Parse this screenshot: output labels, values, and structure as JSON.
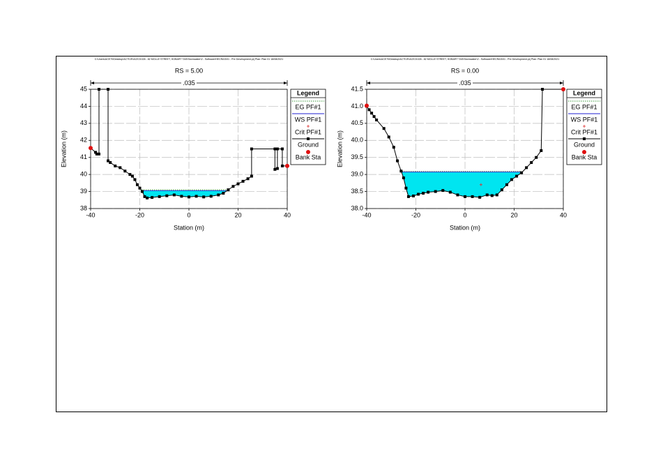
{
  "chart_data": [
    {
      "type": "line",
      "header": "C:\\Users\\ACE70\\Desktop\\ACTIVE\\ACE21026 - 82 MOLLE STREET, HOBART TAS\\Stormwater\\2 - Software\\HECRAS\\01 - Pre Development.prj    Plan: Plan 01    18/08/2021",
      "title": "RS = 5.00",
      "mannings_n": ".035",
      "xlabel": "Station (m)",
      "ylabel": "Elevation (m)",
      "xlim": [
        -40,
        40
      ],
      "ylim": [
        38,
        45
      ],
      "xticks": [
        -40,
        -20,
        0,
        20,
        40
      ],
      "yticks": [
        38,
        39,
        40,
        41,
        42,
        43,
        44,
        45
      ],
      "grid": true,
      "legend_title": "Legend",
      "series": [
        {
          "name": "EG PF#1",
          "color": "#3a9a3a",
          "line_style": "dotted",
          "marker": "none",
          "x": [
            -19.3,
            15.3
          ],
          "values": [
            39.1,
            39.1
          ]
        },
        {
          "name": "WS PF#1",
          "color": "#2020d0",
          "line_style": "solid",
          "marker": "none",
          "fill": "#00e5f0",
          "x": [
            -19.2,
            15.2
          ],
          "values": [
            39.05,
            39.05
          ]
        },
        {
          "name": "Crit PF#1",
          "color": "#e03030",
          "line_style": "none",
          "marker": "plus",
          "x": [],
          "values": []
        },
        {
          "name": "Ground",
          "color": "#000000",
          "line_style": "solid",
          "marker": "square",
          "x": [
            -40,
            -38,
            -37.5,
            -36.6,
            -36.6,
            -32.9,
            -32.9,
            -32,
            -30,
            -28,
            -26,
            -24,
            -23,
            -22,
            -21,
            -20,
            -19,
            -18,
            -17,
            -15,
            -12,
            -9,
            -6,
            -3,
            0,
            3,
            6,
            9,
            12,
            14,
            16,
            18,
            20,
            22,
            24,
            25.5,
            25.5,
            35,
            35,
            36,
            36,
            38,
            38,
            40
          ],
          "values": [
            41.55,
            41.3,
            41.2,
            41.2,
            45,
            45,
            40.8,
            40.7,
            40.5,
            40.4,
            40.2,
            40,
            39.9,
            39.7,
            39.4,
            39.2,
            39,
            38.7,
            38.62,
            38.65,
            38.7,
            38.75,
            38.8,
            38.72,
            38.68,
            38.72,
            38.68,
            38.72,
            38.8,
            38.9,
            39.1,
            39.3,
            39.45,
            39.6,
            39.75,
            39.9,
            41.5,
            41.5,
            40.3,
            40.35,
            41.5,
            41.5,
            40.5,
            40.5
          ]
        },
        {
          "name": "Bank Sta",
          "color": "#e01010",
          "line_style": "none",
          "marker": "circle",
          "x": [
            -40,
            40
          ],
          "values": [
            41.55,
            40.5
          ]
        }
      ]
    },
    {
      "type": "line",
      "header": "C:\\Users\\ACE70\\Desktop\\ACTIVE\\ACE21026 - 82 MOLLE STREET, HOBART TAS\\Stormwater\\2 - Software\\HECRAS\\01 - Pre Development.prj    Plan: Plan 01    18/08/2021",
      "title": "RS = 0.00",
      "mannings_n": ".035",
      "xlabel": "Station (m)",
      "ylabel": "Elevation (m)",
      "xlim": [
        -40,
        40
      ],
      "ylim": [
        38,
        41.5
      ],
      "xticks": [
        -40,
        -20,
        0,
        20,
        40
      ],
      "yticks": [
        {
          "value": 38,
          "label": "38.0"
        },
        38.5,
        {
          "value": 39,
          "label": "39.0"
        },
        39.5,
        {
          "value": 40,
          "label": "40.0"
        },
        40.5,
        {
          "value": 41,
          "label": "41.0"
        },
        41.5
      ],
      "grid": true,
      "legend_title": "Legend",
      "series": [
        {
          "name": "EG PF#1",
          "color": "#3a9a3a",
          "line_style": "dotted",
          "marker": "none",
          "x": [
            -26.4,
            22.9
          ],
          "values": [
            39.09,
            39.09
          ]
        },
        {
          "name": "WS PF#1",
          "color": "#2020d0",
          "line_style": "solid",
          "marker": "none",
          "fill": "#00e5f0",
          "x": [
            -26.3,
            22.8
          ],
          "values": [
            39.07,
            39.07
          ]
        },
        {
          "name": "Crit PF#1",
          "color": "#e03030",
          "line_style": "none",
          "marker": "plus",
          "x": [
            6.5
          ],
          "values": [
            38.7
          ]
        },
        {
          "name": "Ground",
          "color": "#000000",
          "line_style": "solid",
          "marker": "square",
          "x": [
            -40,
            -39,
            -38,
            -37,
            -36,
            -33,
            -31,
            -29,
            -27.5,
            -26,
            -25,
            -24,
            -23,
            -21,
            -19,
            -17,
            -15,
            -12,
            -9,
            -6,
            -3,
            0,
            3,
            6,
            9,
            11,
            13,
            15,
            17,
            19,
            21,
            23,
            25,
            27,
            29,
            31,
            31.5,
            40
          ],
          "values": [
            41.0,
            40.9,
            40.8,
            40.7,
            40.6,
            40.35,
            40.1,
            39.8,
            39.4,
            39.1,
            38.9,
            38.6,
            38.35,
            38.37,
            38.42,
            38.45,
            38.48,
            38.5,
            38.53,
            38.48,
            38.4,
            38.35,
            38.35,
            38.33,
            38.4,
            38.38,
            38.4,
            38.55,
            38.7,
            38.85,
            38.95,
            39.05,
            39.2,
            39.35,
            39.5,
            39.7,
            41.5,
            41.5
          ]
        },
        {
          "name": "Bank Sta",
          "color": "#e01010",
          "line_style": "none",
          "marker": "circle",
          "x": [
            -40,
            40
          ],
          "values": [
            41.02,
            41.5
          ]
        }
      ]
    }
  ]
}
